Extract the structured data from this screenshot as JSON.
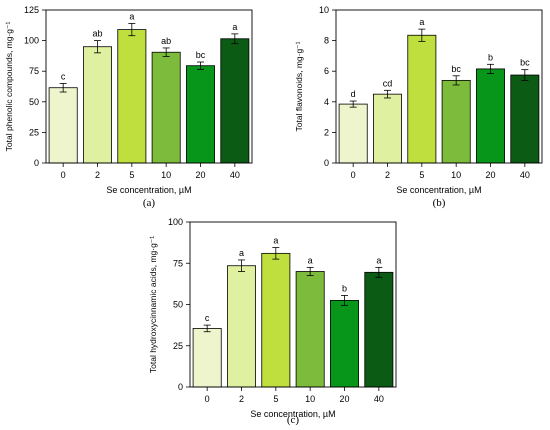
{
  "chart_data": [
    {
      "type": "bar",
      "panel_label": "(a)",
      "xlabel": "Se concentration, µM",
      "ylabel": "Total phenolic compounds, mg·g⁻¹",
      "categories": [
        "0",
        "2",
        "5",
        "10",
        "20",
        "40"
      ],
      "values": [
        61.5,
        95,
        109,
        90.5,
        79.5,
        101.5
      ],
      "errors": [
        3.5,
        5,
        5,
        3.5,
        3,
        4
      ],
      "letters": [
        "c",
        "ab",
        "a",
        "ab",
        "bc",
        "a"
      ],
      "ylim": [
        0,
        125
      ],
      "yticks": [
        0,
        25,
        50,
        75,
        100,
        125
      ],
      "grid": false
    },
    {
      "type": "bar",
      "panel_label": "(b)",
      "xlabel": "Se concentration, µM",
      "ylabel": "Total flavonoids, mg·g⁻¹",
      "categories": [
        "0",
        "2",
        "5",
        "10",
        "20",
        "40"
      ],
      "values": [
        3.85,
        4.5,
        8.35,
        5.4,
        6.15,
        5.75
      ],
      "errors": [
        0.2,
        0.25,
        0.4,
        0.3,
        0.3,
        0.35
      ],
      "letters": [
        "d",
        "cd",
        "a",
        "bc",
        "b",
        "bc"
      ],
      "ylim": [
        0,
        10
      ],
      "yticks": [
        0,
        2,
        4,
        6,
        8,
        10
      ],
      "grid": false
    },
    {
      "type": "bar",
      "panel_label": "(c)",
      "xlabel": "Se concentration, µM",
      "ylabel": "Total hydroxycinnamic acids, mg·g⁻¹",
      "categories": [
        "0",
        "2",
        "5",
        "10",
        "20",
        "40"
      ],
      "values": [
        35.5,
        73.5,
        81,
        70,
        52.5,
        69.5
      ],
      "errors": [
        2,
        3.5,
        3.5,
        2.5,
        3,
        3
      ],
      "letters": [
        "c",
        "a",
        "a",
        "a",
        "b",
        "a"
      ],
      "ylim": [
        0,
        100
      ],
      "yticks": [
        0,
        25,
        50,
        75,
        100
      ],
      "grid": false
    }
  ],
  "colors": {
    "bars": [
      "#eef4cc",
      "#dff0a0",
      "#bedf3e",
      "#7dbb3c",
      "#07961a",
      "#0b5b14"
    ],
    "axis": "#000000"
  }
}
